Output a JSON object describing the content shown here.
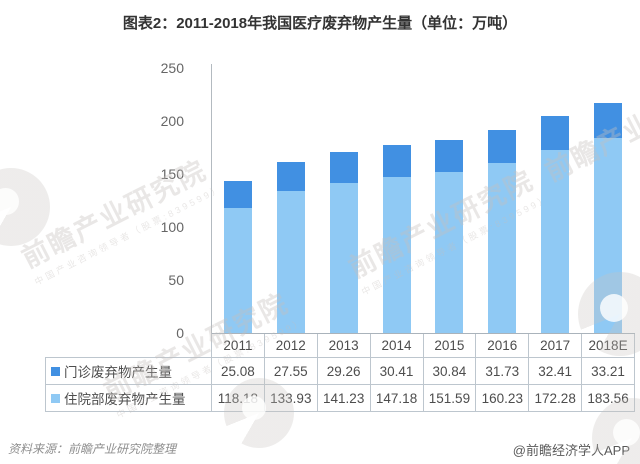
{
  "title": "图表2：2011-2018年我国医疗废弃物产生量（单位：万吨）",
  "chart_data": {
    "type": "bar",
    "stacked": true,
    "title": "图表2：2011-2018年我国医疗废弃物产生量（单位：万吨）",
    "xlabel": "",
    "ylabel": "",
    "unit": "万吨",
    "categories": [
      "2011",
      "2012",
      "2013",
      "2014",
      "2015",
      "2016",
      "2017",
      "2018E"
    ],
    "series": [
      {
        "name": "门诊废弃物产生量",
        "color": "#4190E2",
        "values": [
          25.08,
          27.55,
          29.26,
          30.41,
          30.84,
          31.73,
          32.41,
          33.21
        ]
      },
      {
        "name": "住院部废弃物产生量",
        "color": "#8FC9F4",
        "values": [
          118.18,
          133.93,
          141.23,
          147.18,
          151.59,
          160.23,
          172.28,
          183.56
        ]
      }
    ],
    "ylim": [
      0,
      250
    ],
    "yticks": [
      0,
      50,
      100,
      150,
      200,
      250
    ],
    "grid": false,
    "legend_position": "table-left-column"
  },
  "watermark": {
    "text": "前瞻产业研究院",
    "subtext": "中国产业咨询领导者（股票:839599）"
  },
  "footer": {
    "source": "资料来源：前瞻产业研究院整理",
    "credit": "@前瞻经济学人APP"
  },
  "colors": {
    "outpatient_bar": "#4190E2",
    "inpatient_bar": "#8FC9F4",
    "axis": "#B3BAC0",
    "table_border": "#BDC6CE",
    "tick_text": "#666666",
    "cell_text": "#4D4D4D",
    "title_text": "#333333"
  }
}
